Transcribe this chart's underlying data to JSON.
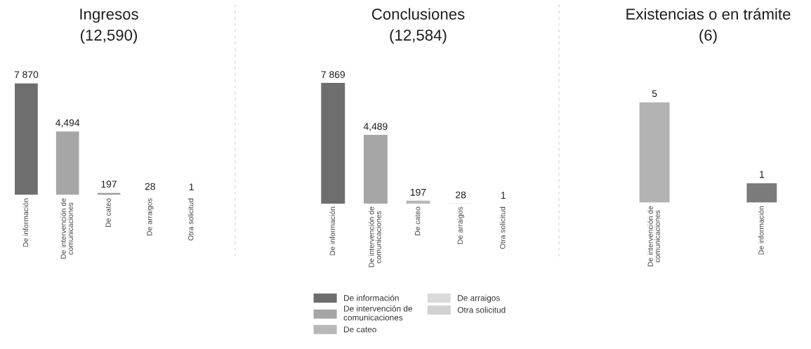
{
  "chart_data": [
    {
      "type": "bar",
      "title": "Ingresos",
      "subtitle": "(12,590)",
      "categories": [
        "De información",
        "De intervención de\ncomunicaciones",
        "De cateo",
        "De arraigos",
        "Otra solicitud"
      ],
      "values": [
        7870,
        4494,
        197,
        28,
        1
      ],
      "value_labels": [
        "7 870",
        "4,494",
        "197",
        "28",
        "1"
      ],
      "colors": [
        "#6e6e6e",
        "#a6a6a6",
        "#9c9c9c",
        "#dadada",
        "#d2d2d2"
      ],
      "tick_labels": "x"
    },
    {
      "type": "bar",
      "title": "Conclusiones",
      "subtitle": "(12,584)",
      "categories": [
        "De información",
        "De intervención de\ncomunicaciones",
        "De cateo",
        "De arraigos",
        "Otra solicitud"
      ],
      "series": [
        {
          "name": "De información",
          "color": "#6e6e6e",
          "values": [
            7869,
            null,
            null,
            null,
            null
          ],
          "value_labels": [
            "7 869",
            null,
            null,
            null,
            null
          ]
        },
        {
          "name": "De intervención de\ncomunicaciones",
          "color": "#a6a6a6",
          "values": [
            null,
            4489,
            null,
            null,
            null
          ],
          "value_labels": [
            null,
            "4,489",
            null,
            null,
            null
          ]
        },
        {
          "name": "De cateo",
          "color": "#b8b8b8",
          "values": [
            null,
            null,
            197,
            null,
            null
          ],
          "value_labels": [
            null,
            null,
            "197",
            null,
            null
          ]
        },
        {
          "name": "De arraigos",
          "color": "#dadada",
          "values": [
            null,
            null,
            null,
            28,
            null
          ],
          "value_labels": [
            null,
            null,
            null,
            "28",
            null
          ]
        },
        {
          "name": "Otra solicitud",
          "color": "#d2d2d2",
          "values": [
            null,
            null,
            null,
            null,
            1
          ],
          "value_labels": [
            null,
            null,
            null,
            null,
            "1"
          ]
        }
      ],
      "tick_labels": "x",
      "legend": "bottom"
    },
    {
      "type": "bar",
      "title": "Existencias o en trámite",
      "subtitle": "(6)",
      "categories": [
        "De intervención de\ncomunicaciones",
        "De información"
      ],
      "values": [
        5,
        1
      ],
      "colors": [
        "#b3b3b3",
        "#7b7b7b"
      ],
      "data_labels": true,
      "tick_labels": "x"
    }
  ]
}
